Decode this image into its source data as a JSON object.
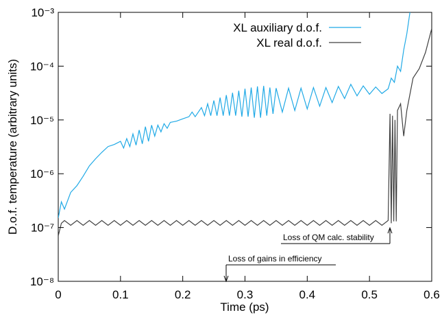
{
  "chart_data": {
    "type": "line",
    "xlabel": "Time (ps)",
    "ylabel": "D.o.f. temperature (arbitrary units)",
    "log_y": true,
    "legend": "upper right",
    "xlim": [
      0,
      0.6
    ],
    "xticks": [
      0,
      0.1,
      0.2,
      0.3,
      0.4,
      0.5,
      0.6
    ],
    "ylim": [
      1e-08,
      0.001
    ],
    "yticks": [
      {
        "value": 1e-08,
        "label": "10⁻⁸"
      },
      {
        "value": 1e-07,
        "label": "10⁻⁷"
      },
      {
        "value": 1e-06,
        "label": "10⁻⁶"
      },
      {
        "value": 1e-05,
        "label": "10⁻⁵"
      },
      {
        "value": 0.0001,
        "label": "10⁻⁴"
      },
      {
        "value": 0.001,
        "label": "10⁻³"
      }
    ],
    "annotations": [
      "Loss of QM calc. stability",
      "Loss of gains in efficiency"
    ],
    "series": [
      {
        "name": "XL auxiliary d.o.f.",
        "color": "#1fa9e6",
        "x": [
          0,
          0.005,
          0.01,
          0.02,
          0.03,
          0.04,
          0.05,
          0.06,
          0.07,
          0.08,
          0.09,
          0.1,
          0.105,
          0.11,
          0.115,
          0.12,
          0.125,
          0.13,
          0.135,
          0.14,
          0.145,
          0.15,
          0.155,
          0.16,
          0.165,
          0.17,
          0.175,
          0.18,
          0.19,
          0.2,
          0.21,
          0.215,
          0.22,
          0.23,
          0.235,
          0.24,
          0.245,
          0.25,
          0.255,
          0.26,
          0.265,
          0.27,
          0.275,
          0.28,
          0.285,
          0.29,
          0.295,
          0.3,
          0.305,
          0.31,
          0.315,
          0.32,
          0.325,
          0.33,
          0.335,
          0.34,
          0.345,
          0.35,
          0.36,
          0.37,
          0.38,
          0.39,
          0.4,
          0.41,
          0.42,
          0.43,
          0.44,
          0.45,
          0.46,
          0.47,
          0.48,
          0.49,
          0.5,
          0.51,
          0.52,
          0.53,
          0.535,
          0.54,
          0.545,
          0.55,
          0.555,
          0.56,
          0.565
        ],
        "values": [
          1.5e-07,
          3e-07,
          2.2e-07,
          4.5e-07,
          6e-07,
          9e-07,
          1.4e-06,
          1.9e-06,
          2.5e-06,
          3.2e-06,
          3.5e-06,
          4e-06,
          3e-06,
          4.5e-06,
          3.2e-06,
          5.5e-06,
          3.4e-06,
          6.5e-06,
          3.6e-06,
          7.5e-06,
          4e-06,
          8e-06,
          5e-06,
          8e-06,
          6e-06,
          8.5e-06,
          7e-06,
          9e-06,
          9.5e-06,
          1.05e-05,
          1.15e-05,
          1.4e-05,
          1.15e-05,
          1.7e-05,
          1.2e-05,
          2e-05,
          1.2e-05,
          2.3e-05,
          1.2e-05,
          2.6e-05,
          1.2e-05,
          2.9e-05,
          1.2e-05,
          3.2e-05,
          1.2e-05,
          3.5e-05,
          1.15e-05,
          3.8e-05,
          1.15e-05,
          4e-05,
          1.1e-05,
          4.2e-05,
          1.1e-05,
          4.3e-05,
          1.2e-05,
          4e-05,
          1.3e-05,
          3.9e-05,
          1.4e-05,
          3.9e-05,
          1.5e-05,
          3.9e-05,
          1.6e-05,
          4e-05,
          1.8e-05,
          4e-05,
          2.1e-05,
          4.2e-05,
          2.5e-05,
          4.6e-05,
          2.8e-05,
          4.3e-05,
          3e-05,
          4.1e-05,
          3.1e-05,
          3.8e-05,
          6e-05,
          5e-05,
          0.0001,
          8e-05,
          0.0002,
          0.0004,
          0.001
        ]
      },
      {
        "name": "XL real d.o.f.",
        "color": "#404040",
        "x": [
          0,
          0.005,
          0.01,
          0.02,
          0.03,
          0.04,
          0.05,
          0.06,
          0.07,
          0.08,
          0.09,
          0.1,
          0.11,
          0.12,
          0.13,
          0.14,
          0.15,
          0.16,
          0.17,
          0.18,
          0.19,
          0.2,
          0.21,
          0.22,
          0.23,
          0.24,
          0.25,
          0.26,
          0.27,
          0.28,
          0.29,
          0.3,
          0.31,
          0.32,
          0.33,
          0.34,
          0.35,
          0.36,
          0.37,
          0.38,
          0.39,
          0.4,
          0.41,
          0.42,
          0.43,
          0.44,
          0.45,
          0.46,
          0.47,
          0.48,
          0.49,
          0.5,
          0.51,
          0.52,
          0.53,
          0.533,
          0.535,
          0.537,
          0.539,
          0.541,
          0.543,
          0.545,
          0.55,
          0.555,
          0.56,
          0.565,
          0.57,
          0.58,
          0.59,
          0.6
        ],
        "values": [
          7e-08,
          1.2e-07,
          1.35e-07,
          1.1e-07,
          1.35e-07,
          1.1e-07,
          1.35e-07,
          1.1e-07,
          1.35e-07,
          1.1e-07,
          1.35e-07,
          1.1e-07,
          1.35e-07,
          1.1e-07,
          1.35e-07,
          1.1e-07,
          1.35e-07,
          1.1e-07,
          1.35e-07,
          1.1e-07,
          1.35e-07,
          1.1e-07,
          1.35e-07,
          1.1e-07,
          1.35e-07,
          1.1e-07,
          1.35e-07,
          1.1e-07,
          1.35e-07,
          1.1e-07,
          1.35e-07,
          1.1e-07,
          1.35e-07,
          1.1e-07,
          1.35e-07,
          1.1e-07,
          1.35e-07,
          1.1e-07,
          1.35e-07,
          1.1e-07,
          1.35e-07,
          1.1e-07,
          1.35e-07,
          1.1e-07,
          1.35e-07,
          1.1e-07,
          1.35e-07,
          1.1e-07,
          1.35e-07,
          1.1e-07,
          1.35e-07,
          1.1e-07,
          1.35e-07,
          1.1e-07,
          1.35e-07,
          1.3e-05,
          1.2e-07,
          1.2e-05,
          1.3e-07,
          1e-05,
          1.3e-07,
          1.5e-05,
          2e-05,
          5e-06,
          1.5e-05,
          3e-05,
          6e-05,
          9e-05,
          0.00018,
          0.0005
        ]
      }
    ]
  }
}
